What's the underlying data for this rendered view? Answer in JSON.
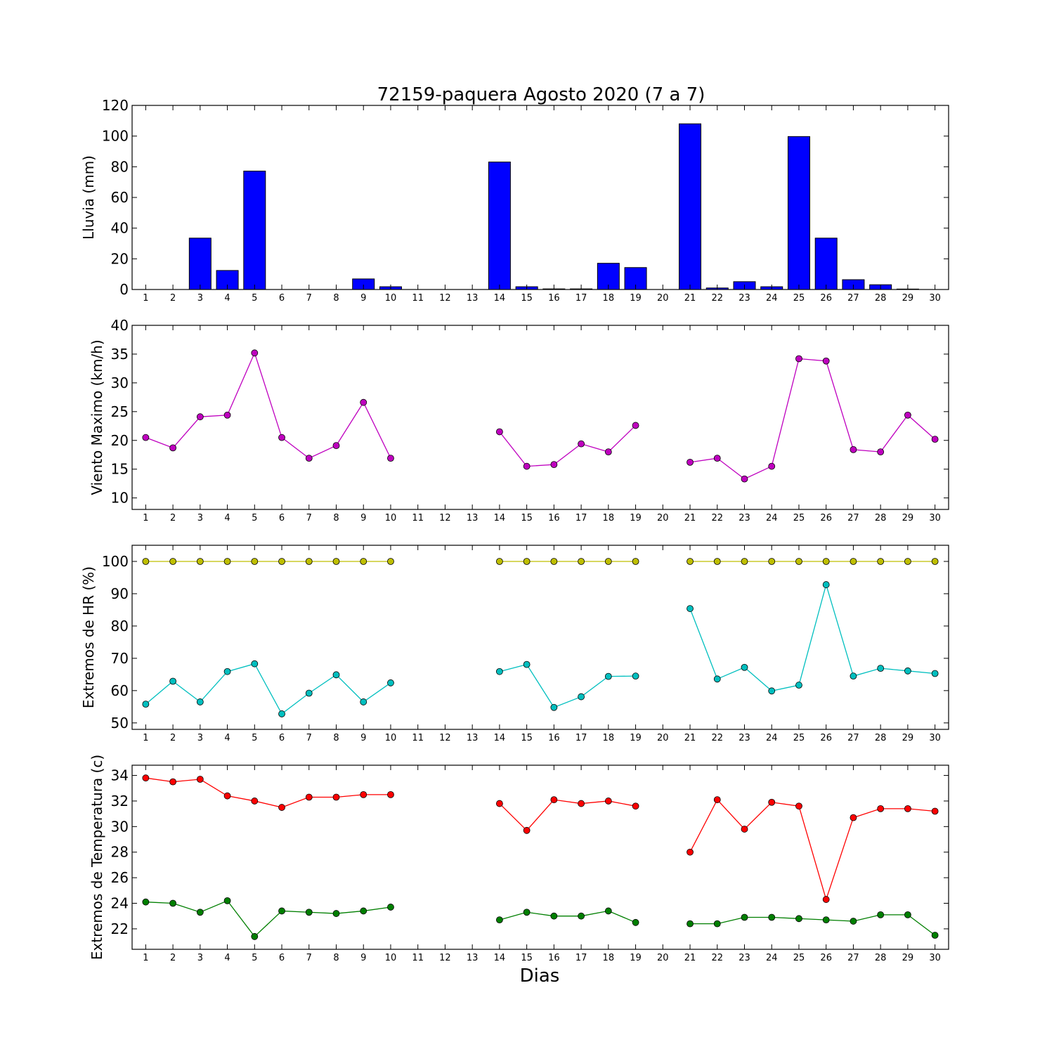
{
  "figure": {
    "title": "72159-paquera Agosto 2020  (7 a 7)",
    "xlabel": "Dias"
  },
  "chart_data": [
    {
      "type": "bar",
      "ylabel": "Lluvia (mm)",
      "ylim": [
        0,
        120
      ],
      "yticks": [
        0,
        20,
        40,
        60,
        80,
        100,
        120
      ],
      "color": "#0000ff",
      "x": [
        1,
        2,
        3,
        4,
        5,
        6,
        7,
        8,
        9,
        10,
        11,
        12,
        13,
        14,
        15,
        16,
        17,
        18,
        19,
        20,
        21,
        22,
        23,
        24,
        25,
        26,
        27,
        28,
        29,
        30
      ],
      "values": [
        0,
        0,
        33.5,
        12.4,
        77.2,
        0,
        0,
        0,
        6.9,
        1.8,
        0,
        0,
        0,
        83.1,
        1.8,
        0.4,
        0.4,
        17.1,
        14.3,
        0,
        108,
        1.0,
        5.1,
        1.8,
        99.7,
        33.5,
        6.4,
        3.1,
        0.3,
        0
      ],
      "grid": false
    },
    {
      "type": "line",
      "ylabel": "Viento Maximo (km/h)",
      "ylim": [
        8,
        40
      ],
      "yticks": [
        10,
        15,
        20,
        25,
        30,
        35,
        40
      ],
      "series": [
        {
          "color": "#bf00bf",
          "values": [
            20.5,
            18.7,
            24.1,
            24.4,
            35.2,
            20.5,
            16.9,
            19.1,
            26.6,
            16.9,
            null,
            null,
            null,
            21.5,
            15.5,
            15.8,
            19.4,
            18.0,
            22.6,
            null,
            16.2,
            16.9,
            13.3,
            15.5,
            34.2,
            33.8,
            18.4,
            18.0,
            24.4,
            20.2
          ]
        }
      ],
      "grid": false
    },
    {
      "type": "line",
      "ylabel": "Extremos de HR (%)",
      "ylim": [
        48,
        105
      ],
      "yticks": [
        50,
        60,
        70,
        80,
        90,
        100
      ],
      "series": [
        {
          "color": "#bfbf00",
          "values": [
            100,
            100,
            100,
            100,
            100,
            100,
            100,
            100,
            100,
            100,
            null,
            null,
            null,
            100,
            100,
            100,
            100,
            100,
            100,
            null,
            100,
            100,
            100,
            100,
            100,
            100,
            100,
            100,
            100,
            100
          ]
        },
        {
          "color": "#00bfbf",
          "values": [
            55.8,
            62.9,
            56.5,
            65.9,
            68.3,
            52.8,
            59.2,
            64.9,
            56.5,
            62.4,
            null,
            null,
            null,
            65.9,
            68.1,
            54.8,
            58.1,
            64.4,
            64.5,
            null,
            85.4,
            63.6,
            67.2,
            59.9,
            61.7,
            92.8,
            64.5,
            66.9,
            66.1,
            65.3
          ]
        }
      ],
      "grid": false
    },
    {
      "type": "line",
      "ylabel": "Extremos de Temperatura (c)",
      "ylim": [
        20.4,
        34.8
      ],
      "yticks": [
        22,
        24,
        26,
        28,
        30,
        32,
        34
      ],
      "series": [
        {
          "color": "#ff0000",
          "values": [
            33.8,
            33.5,
            33.7,
            32.4,
            32.0,
            31.5,
            32.3,
            32.3,
            32.5,
            32.5,
            null,
            null,
            null,
            31.8,
            29.7,
            32.1,
            31.8,
            32.0,
            31.6,
            null,
            28.0,
            32.1,
            29.8,
            31.9,
            31.6,
            24.3,
            30.7,
            31.4,
            31.4,
            31.2
          ]
        },
        {
          "color": "#007f00",
          "values": [
            24.1,
            24.0,
            23.3,
            24.2,
            21.4,
            23.4,
            23.3,
            23.2,
            23.4,
            23.7,
            null,
            null,
            null,
            22.7,
            23.3,
            23.0,
            23.0,
            23.4,
            22.5,
            null,
            22.4,
            22.4,
            22.9,
            22.9,
            22.8,
            22.7,
            22.6,
            23.1,
            23.1,
            21.5
          ]
        }
      ],
      "grid": false
    }
  ],
  "xticks": [
    "1",
    "2",
    "3",
    "4",
    "5",
    "6",
    "7",
    "8",
    "9",
    "10",
    "11",
    "12",
    "13",
    "14",
    "15",
    "16",
    "17",
    "18",
    "19",
    "20",
    "21",
    "22",
    "23",
    "24",
    "25",
    "26",
    "27",
    "28",
    "29",
    "30"
  ]
}
